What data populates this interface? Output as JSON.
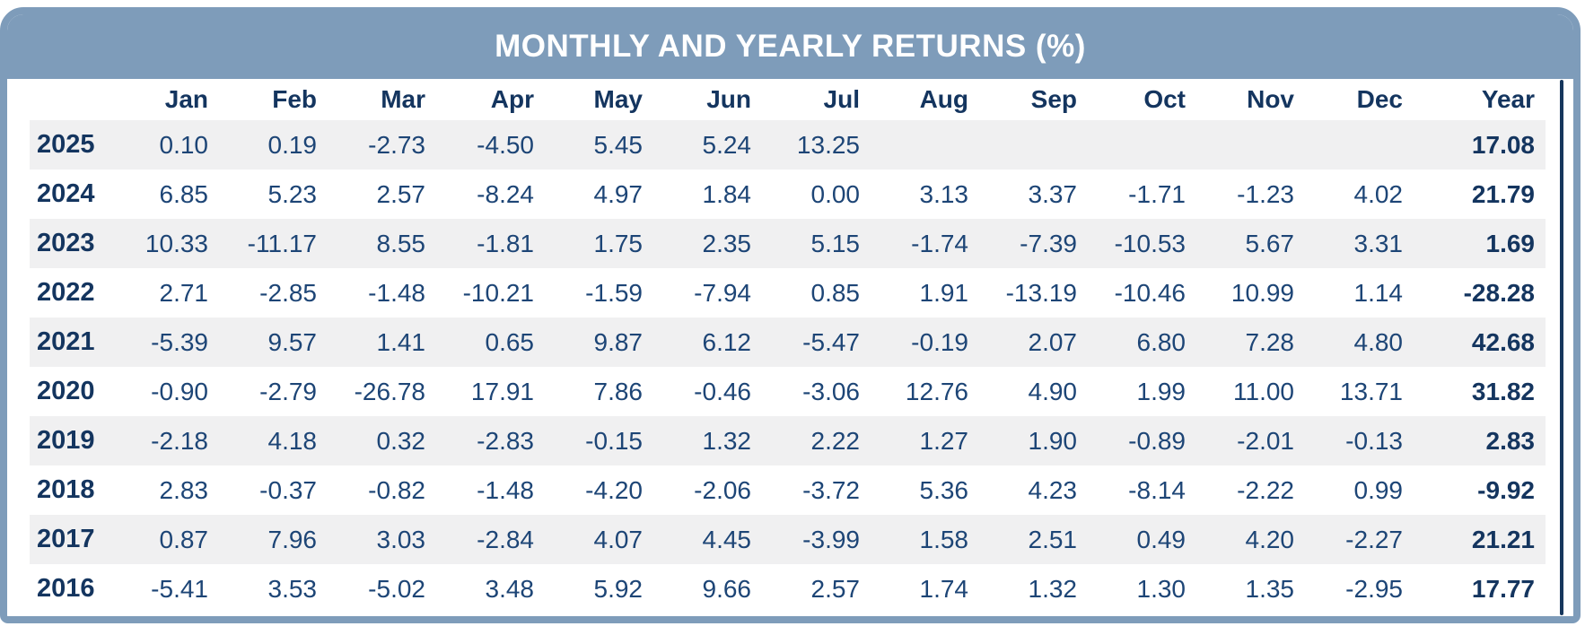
{
  "title": "MONTHLY AND YEARLY RETURNS (%)",
  "chart_data": {
    "type": "table",
    "title": "MONTHLY AND YEARLY RETURNS (%)",
    "columns": [
      "",
      "Jan",
      "Feb",
      "Mar",
      "Apr",
      "May",
      "Jun",
      "Jul",
      "Aug",
      "Sep",
      "Oct",
      "Nov",
      "Dec",
      "Year"
    ],
    "rows": [
      {
        "year": "2025",
        "monthly": [
          "0.10",
          "0.19",
          "-2.73",
          "-4.50",
          "5.45",
          "5.24",
          "13.25",
          "",
          "",
          "",
          "",
          ""
        ],
        "yearly": "17.08"
      },
      {
        "year": "2024",
        "monthly": [
          "6.85",
          "5.23",
          "2.57",
          "-8.24",
          "4.97",
          "1.84",
          "0.00",
          "3.13",
          "3.37",
          "-1.71",
          "-1.23",
          "4.02"
        ],
        "yearly": "21.79"
      },
      {
        "year": "2023",
        "monthly": [
          "10.33",
          "-11.17",
          "8.55",
          "-1.81",
          "1.75",
          "2.35",
          "5.15",
          "-1.74",
          "-7.39",
          "-10.53",
          "5.67",
          "3.31"
        ],
        "yearly": "1.69"
      },
      {
        "year": "2022",
        "monthly": [
          "2.71",
          "-2.85",
          "-1.48",
          "-10.21",
          "-1.59",
          "-7.94",
          "0.85",
          "1.91",
          "-13.19",
          "-10.46",
          "10.99",
          "1.14"
        ],
        "yearly": "-28.28"
      },
      {
        "year": "2021",
        "monthly": [
          "-5.39",
          "9.57",
          "1.41",
          "0.65",
          "9.87",
          "6.12",
          "-5.47",
          "-0.19",
          "2.07",
          "6.80",
          "7.28",
          "4.80"
        ],
        "yearly": "42.68"
      },
      {
        "year": "2020",
        "monthly": [
          "-0.90",
          "-2.79",
          "-26.78",
          "17.91",
          "7.86",
          "-0.46",
          "-3.06",
          "12.76",
          "4.90",
          "1.99",
          "11.00",
          "13.71"
        ],
        "yearly": "31.82"
      },
      {
        "year": "2019",
        "monthly": [
          "-2.18",
          "4.18",
          "0.32",
          "-2.83",
          "-0.15",
          "1.32",
          "2.22",
          "1.27",
          "1.90",
          "-0.89",
          "-2.01",
          "-0.13"
        ],
        "yearly": "2.83"
      },
      {
        "year": "2018",
        "monthly": [
          "2.83",
          "-0.37",
          "-0.82",
          "-1.48",
          "-4.20",
          "-2.06",
          "-3.72",
          "5.36",
          "4.23",
          "-8.14",
          "-2.22",
          "0.99"
        ],
        "yearly": "-9.92"
      },
      {
        "year": "2017",
        "monthly": [
          "0.87",
          "7.96",
          "3.03",
          "-2.84",
          "4.07",
          "4.45",
          "-3.99",
          "1.58",
          "2.51",
          "0.49",
          "4.20",
          "-2.27"
        ],
        "yearly": "21.21"
      },
      {
        "year": "2016",
        "monthly": [
          "-5.41",
          "3.53",
          "-5.02",
          "3.48",
          "5.92",
          "9.66",
          "2.57",
          "1.74",
          "1.32",
          "1.30",
          "1.35",
          "-2.95"
        ],
        "yearly": "17.77"
      }
    ]
  },
  "colors": {
    "header_bg": "#7e9cba",
    "border": "#7e9cba",
    "title_text": "#ffffff",
    "label_text": "#14355f",
    "value_text": "#1d4576",
    "stripe_bg": "#f0f0f1",
    "scrollbar": "#16365c"
  }
}
